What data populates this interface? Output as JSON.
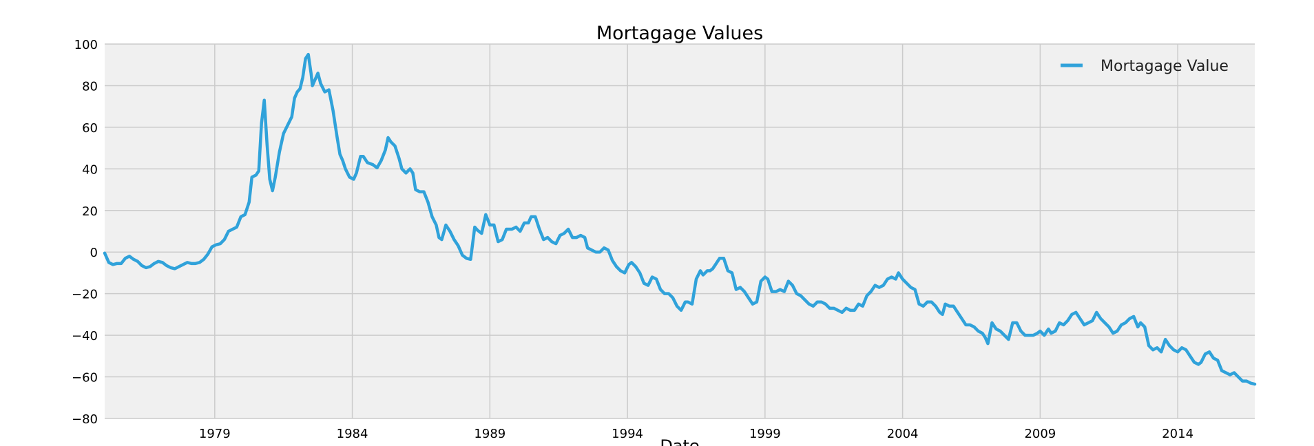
{
  "chart_data": {
    "type": "line",
    "title": "Mortagage Values",
    "xlabel": "Date",
    "ylabel": "",
    "xlim": [
      1975.0,
      2016.8
    ],
    "ylim": [
      -80,
      100
    ],
    "grid": true,
    "legend_position": "top-right",
    "y_ticks": [
      100,
      80,
      60,
      40,
      20,
      0,
      -20,
      -40,
      -60,
      -80
    ],
    "y_tick_labels": [
      "100",
      "80",
      "60",
      "40",
      "20",
      "0",
      "−20",
      "−40",
      "−60",
      "−80"
    ],
    "x_ticks": [
      1979,
      1984,
      1989,
      1994,
      1999,
      2004,
      2009,
      2014
    ],
    "x_tick_labels": [
      "1979",
      "1984",
      "1989",
      "1994",
      "1999",
      "2004",
      "2009",
      "2014"
    ],
    "series": [
      {
        "name": "Mortagage Value",
        "color": "#30a2da",
        "points": [
          [
            1975.0,
            -0.5
          ],
          [
            1975.15,
            -5.0
          ],
          [
            1975.3,
            -6.0
          ],
          [
            1975.45,
            -5.5
          ],
          [
            1975.6,
            -5.5
          ],
          [
            1975.75,
            -3.0
          ],
          [
            1975.9,
            -2.0
          ],
          [
            1976.05,
            -3.5
          ],
          [
            1976.2,
            -4.5
          ],
          [
            1976.35,
            -6.5
          ],
          [
            1976.5,
            -7.5
          ],
          [
            1976.65,
            -7.0
          ],
          [
            1976.8,
            -5.5
          ],
          [
            1976.95,
            -4.5
          ],
          [
            1977.1,
            -5.0
          ],
          [
            1977.25,
            -6.5
          ],
          [
            1977.4,
            -7.5
          ],
          [
            1977.55,
            -8.0
          ],
          [
            1977.7,
            -7.0
          ],
          [
            1977.85,
            -6.0
          ],
          [
            1978.0,
            -5.0
          ],
          [
            1978.15,
            -5.5
          ],
          [
            1978.3,
            -5.5
          ],
          [
            1978.45,
            -5.0
          ],
          [
            1978.6,
            -3.5
          ],
          [
            1978.75,
            -1.0
          ],
          [
            1978.9,
            2.5
          ],
          [
            1979.05,
            3.5
          ],
          [
            1979.2,
            4.0
          ],
          [
            1979.35,
            6.0
          ],
          [
            1979.5,
            10.0
          ],
          [
            1979.65,
            11.0
          ],
          [
            1979.8,
            12.0
          ],
          [
            1979.95,
            17.0
          ],
          [
            1980.1,
            18.0
          ],
          [
            1980.25,
            24.0
          ],
          [
            1980.35,
            36.0
          ],
          [
            1980.5,
            37.0
          ],
          [
            1980.6,
            39.0
          ],
          [
            1980.7,
            62.0
          ],
          [
            1980.8,
            73.0
          ],
          [
            1980.9,
            52.0
          ],
          [
            1981.0,
            35.0
          ],
          [
            1981.1,
            29.5
          ],
          [
            1981.2,
            36.0
          ],
          [
            1981.35,
            48.0
          ],
          [
            1981.5,
            57.0
          ],
          [
            1981.65,
            61.0
          ],
          [
            1981.8,
            65.0
          ],
          [
            1981.9,
            74.0
          ],
          [
            1982.0,
            77.0
          ],
          [
            1982.1,
            78.5
          ],
          [
            1982.2,
            84.0
          ],
          [
            1982.3,
            93.0
          ],
          [
            1982.4,
            95.0
          ],
          [
            1982.5,
            86.0
          ],
          [
            1982.55,
            80.0
          ],
          [
            1982.65,
            83.0
          ],
          [
            1982.75,
            86.0
          ],
          [
            1982.85,
            81.0
          ],
          [
            1983.0,
            77.0
          ],
          [
            1983.15,
            78.0
          ],
          [
            1983.3,
            68.0
          ],
          [
            1983.45,
            55.0
          ],
          [
            1983.55,
            47.0
          ],
          [
            1983.65,
            44.0
          ],
          [
            1983.75,
            40.0
          ],
          [
            1983.9,
            36.0
          ],
          [
            1984.05,
            35.0
          ],
          [
            1984.15,
            38.0
          ],
          [
            1984.3,
            46.0
          ],
          [
            1984.4,
            46.0
          ],
          [
            1984.55,
            43.0
          ],
          [
            1984.75,
            42.0
          ],
          [
            1984.9,
            40.5
          ],
          [
            1985.05,
            44.0
          ],
          [
            1985.2,
            49.0
          ],
          [
            1985.3,
            55.0
          ],
          [
            1985.4,
            53.0
          ],
          [
            1985.55,
            51.0
          ],
          [
            1985.7,
            45.0
          ],
          [
            1985.8,
            40.0
          ],
          [
            1985.95,
            38.0
          ],
          [
            1986.1,
            40.0
          ],
          [
            1986.2,
            38.0
          ],
          [
            1986.3,
            30.0
          ],
          [
            1986.45,
            29.0
          ],
          [
            1986.6,
            29.0
          ],
          [
            1986.75,
            24.0
          ],
          [
            1986.9,
            17.0
          ],
          [
            1987.05,
            13.0
          ],
          [
            1987.15,
            7.0
          ],
          [
            1987.25,
            6.0
          ],
          [
            1987.4,
            13.0
          ],
          [
            1987.55,
            10.0
          ],
          [
            1987.7,
            6.0
          ],
          [
            1987.85,
            3.0
          ],
          [
            1988.0,
            -1.5
          ],
          [
            1988.15,
            -3.0
          ],
          [
            1988.3,
            -3.5
          ],
          [
            1988.45,
            12.0
          ],
          [
            1988.55,
            10.5
          ],
          [
            1988.7,
            9.0
          ],
          [
            1988.85,
            18.0
          ],
          [
            1989.0,
            13.0
          ],
          [
            1989.15,
            13.0
          ],
          [
            1989.3,
            5.0
          ],
          [
            1989.45,
            6.0
          ],
          [
            1989.6,
            11.0
          ],
          [
            1989.8,
            11.0
          ],
          [
            1989.95,
            12.0
          ],
          [
            1990.1,
            10.0
          ],
          [
            1990.25,
            14.0
          ],
          [
            1990.4,
            14.0
          ],
          [
            1990.5,
            17.0
          ],
          [
            1990.65,
            17.0
          ],
          [
            1990.8,
            11.0
          ],
          [
            1990.95,
            6.0
          ],
          [
            1991.1,
            7.0
          ],
          [
            1991.25,
            5.0
          ],
          [
            1991.4,
            4.0
          ],
          [
            1991.55,
            8.0
          ],
          [
            1991.7,
            9.0
          ],
          [
            1991.85,
            11.0
          ],
          [
            1992.0,
            7.0
          ],
          [
            1992.15,
            7.0
          ],
          [
            1992.3,
            8.0
          ],
          [
            1992.45,
            7.0
          ],
          [
            1992.55,
            2.0
          ],
          [
            1992.7,
            1.0
          ],
          [
            1992.85,
            0.0
          ],
          [
            1993.0,
            0.0
          ],
          [
            1993.15,
            2.0
          ],
          [
            1993.3,
            1.0
          ],
          [
            1993.45,
            -4.0
          ],
          [
            1993.6,
            -7.0
          ],
          [
            1993.75,
            -9.0
          ],
          [
            1993.9,
            -10.0
          ],
          [
            1994.05,
            -6.0
          ],
          [
            1994.15,
            -5.0
          ],
          [
            1994.3,
            -7.0
          ],
          [
            1994.45,
            -10.0
          ],
          [
            1994.6,
            -15.0
          ],
          [
            1994.75,
            -16.0
          ],
          [
            1994.9,
            -12.0
          ],
          [
            1995.05,
            -13.0
          ],
          [
            1995.2,
            -18.0
          ],
          [
            1995.35,
            -20.0
          ],
          [
            1995.5,
            -20.0
          ],
          [
            1995.65,
            -22.0
          ],
          [
            1995.8,
            -26.0
          ],
          [
            1995.95,
            -28.0
          ],
          [
            1996.1,
            -24.0
          ],
          [
            1996.2,
            -24.0
          ],
          [
            1996.35,
            -25.0
          ],
          [
            1996.5,
            -13.0
          ],
          [
            1996.65,
            -9.0
          ],
          [
            1996.75,
            -11.0
          ],
          [
            1996.9,
            -9.0
          ],
          [
            1997.0,
            -9.0
          ],
          [
            1997.1,
            -8.0
          ],
          [
            1997.2,
            -6.0
          ],
          [
            1997.35,
            -3.0
          ],
          [
            1997.5,
            -3.0
          ],
          [
            1997.65,
            -9.0
          ],
          [
            1997.8,
            -10.0
          ],
          [
            1997.95,
            -18.0
          ],
          [
            1998.1,
            -17.0
          ],
          [
            1998.25,
            -19.0
          ],
          [
            1998.4,
            -22.0
          ],
          [
            1998.55,
            -25.0
          ],
          [
            1998.7,
            -24.0
          ],
          [
            1998.85,
            -14.0
          ],
          [
            1999.0,
            -12.0
          ],
          [
            1999.1,
            -13.0
          ],
          [
            1999.25,
            -19.0
          ],
          [
            1999.4,
            -19.0
          ],
          [
            1999.55,
            -18.0
          ],
          [
            1999.7,
            -19.0
          ],
          [
            1999.85,
            -14.0
          ],
          [
            2000.0,
            -16.0
          ],
          [
            2000.15,
            -20.0
          ],
          [
            2000.3,
            -21.0
          ],
          [
            2000.45,
            -23.0
          ],
          [
            2000.6,
            -25.0
          ],
          [
            2000.75,
            -26.0
          ],
          [
            2000.9,
            -24.0
          ],
          [
            2001.05,
            -24.0
          ],
          [
            2001.2,
            -25.0
          ],
          [
            2001.35,
            -27.0
          ],
          [
            2001.5,
            -27.0
          ],
          [
            2001.65,
            -28.0
          ],
          [
            2001.8,
            -29.0
          ],
          [
            2001.95,
            -27.0
          ],
          [
            2002.1,
            -28.0
          ],
          [
            2002.25,
            -28.0
          ],
          [
            2002.4,
            -25.0
          ],
          [
            2002.55,
            -26.0
          ],
          [
            2002.7,
            -21.0
          ],
          [
            2002.85,
            -19.0
          ],
          [
            2003.0,
            -16.0
          ],
          [
            2003.15,
            -17.0
          ],
          [
            2003.3,
            -16.0
          ],
          [
            2003.45,
            -13.0
          ],
          [
            2003.6,
            -12.0
          ],
          [
            2003.75,
            -13.0
          ],
          [
            2003.85,
            -10.0
          ],
          [
            2004.0,
            -13.0
          ],
          [
            2004.15,
            -15.0
          ],
          [
            2004.3,
            -17.0
          ],
          [
            2004.45,
            -18.0
          ],
          [
            2004.6,
            -25.0
          ],
          [
            2004.75,
            -26.0
          ],
          [
            2004.9,
            -24.0
          ],
          [
            2005.05,
            -24.0
          ],
          [
            2005.2,
            -26.0
          ],
          [
            2005.35,
            -29.0
          ],
          [
            2005.45,
            -30.0
          ],
          [
            2005.55,
            -25.0
          ],
          [
            2005.7,
            -26.0
          ],
          [
            2005.85,
            -26.0
          ],
          [
            2006.0,
            -29.0
          ],
          [
            2006.15,
            -32.0
          ],
          [
            2006.3,
            -35.0
          ],
          [
            2006.45,
            -35.0
          ],
          [
            2006.6,
            -36.0
          ],
          [
            2006.75,
            -38.0
          ],
          [
            2006.9,
            -39.0
          ],
          [
            2007.0,
            -41.0
          ],
          [
            2007.1,
            -44.0
          ],
          [
            2007.25,
            -34.0
          ],
          [
            2007.4,
            -37.0
          ],
          [
            2007.55,
            -38.0
          ],
          [
            2007.7,
            -40.0
          ],
          [
            2007.85,
            -42.0
          ],
          [
            2008.0,
            -34.0
          ],
          [
            2008.15,
            -34.0
          ],
          [
            2008.3,
            -38.0
          ],
          [
            2008.45,
            -40.0
          ],
          [
            2008.6,
            -40.0
          ],
          [
            2008.75,
            -40.0
          ],
          [
            2008.9,
            -39.0
          ],
          [
            2009.0,
            -38.0
          ],
          [
            2009.15,
            -40.0
          ],
          [
            2009.3,
            -37.0
          ],
          [
            2009.4,
            -39.0
          ],
          [
            2009.55,
            -38.0
          ],
          [
            2009.7,
            -34.0
          ],
          [
            2009.85,
            -35.0
          ],
          [
            2010.0,
            -33.0
          ],
          [
            2010.15,
            -30.0
          ],
          [
            2010.3,
            -29.0
          ],
          [
            2010.45,
            -32.0
          ],
          [
            2010.6,
            -35.0
          ],
          [
            2010.75,
            -34.0
          ],
          [
            2010.9,
            -33.0
          ],
          [
            2011.05,
            -29.0
          ],
          [
            2011.2,
            -32.0
          ],
          [
            2011.35,
            -34.0
          ],
          [
            2011.5,
            -36.0
          ],
          [
            2011.65,
            -39.0
          ],
          [
            2011.8,
            -38.0
          ],
          [
            2011.95,
            -35.0
          ],
          [
            2012.1,
            -34.0
          ],
          [
            2012.25,
            -32.0
          ],
          [
            2012.4,
            -31.0
          ],
          [
            2012.55,
            -36.0
          ],
          [
            2012.65,
            -34.0
          ],
          [
            2012.8,
            -36.0
          ],
          [
            2012.95,
            -45.0
          ],
          [
            2013.1,
            -47.0
          ],
          [
            2013.25,
            -46.0
          ],
          [
            2013.4,
            -48.0
          ],
          [
            2013.55,
            -42.0
          ],
          [
            2013.7,
            -45.0
          ],
          [
            2013.85,
            -47.0
          ],
          [
            2014.0,
            -48.0
          ],
          [
            2014.15,
            -46.0
          ],
          [
            2014.3,
            -47.0
          ],
          [
            2014.45,
            -50.0
          ],
          [
            2014.6,
            -53.0
          ],
          [
            2014.75,
            -54.0
          ],
          [
            2014.85,
            -53.0
          ],
          [
            2015.0,
            -49.0
          ],
          [
            2015.15,
            -48.0
          ],
          [
            2015.3,
            -51.0
          ],
          [
            2015.45,
            -52.0
          ],
          [
            2015.6,
            -57.0
          ],
          [
            2015.75,
            -58.0
          ],
          [
            2015.9,
            -59.0
          ],
          [
            2016.05,
            -58.0
          ],
          [
            2016.2,
            -60.0
          ],
          [
            2016.35,
            -62.0
          ],
          [
            2016.5,
            -62.0
          ],
          [
            2016.65,
            -63.0
          ],
          [
            2016.8,
            -63.5
          ]
        ]
      }
    ]
  }
}
